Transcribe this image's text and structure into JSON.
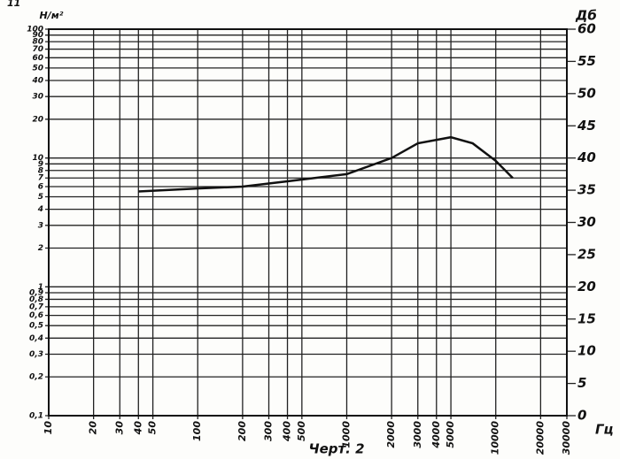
{
  "chart_data": {
    "type": "line",
    "title": "Черт. 2",
    "page_number": "11",
    "x_label": "Гц",
    "y_label": "Н/м²",
    "y2_label": "Дб",
    "xscale": "log",
    "yscale": "log",
    "grid": true,
    "x": [
      40,
      100,
      200,
      400,
      1000,
      2000,
      3000,
      5000,
      7000,
      10000,
      13000
    ],
    "series": [
      {
        "name": "Н/м²",
        "color": "#111111",
        "values": [
          5.5,
          5.8,
          6.0,
          6.6,
          7.5,
          10,
          13,
          14.5,
          13,
          9.5,
          7.0
        ]
      }
    ],
    "xlim": [
      10,
      30000
    ],
    "xticks": [
      10,
      20,
      30,
      40,
      50,
      100,
      200,
      300,
      400,
      500,
      1000,
      2000,
      3000,
      4000,
      5000,
      10000,
      20000,
      30000
    ],
    "ylim": [
      0.1,
      100
    ],
    "yticks": [
      {
        "value": 0.1,
        "label": "0,1"
      },
      {
        "value": 0.2,
        "label": "0,2"
      },
      {
        "value": 0.3,
        "label": "0,3"
      },
      {
        "value": 0.4,
        "label": "0,4"
      },
      {
        "value": 0.5,
        "label": "0,5"
      },
      {
        "value": 0.6,
        "label": "0,6"
      },
      {
        "value": 0.7,
        "label": "0,7"
      },
      {
        "value": 0.8,
        "label": "0,8"
      },
      {
        "value": 0.9,
        "label": "0,9"
      },
      1,
      2,
      3,
      4,
      5,
      6,
      7,
      8,
      9,
      10,
      20,
      30,
      40,
      50,
      60,
      70,
      80,
      90,
      100
    ],
    "y2lim": [
      0,
      60
    ],
    "y2ticks": [
      0,
      5,
      10,
      15,
      20,
      25,
      30,
      35,
      40,
      45,
      50,
      55,
      60
    ]
  }
}
